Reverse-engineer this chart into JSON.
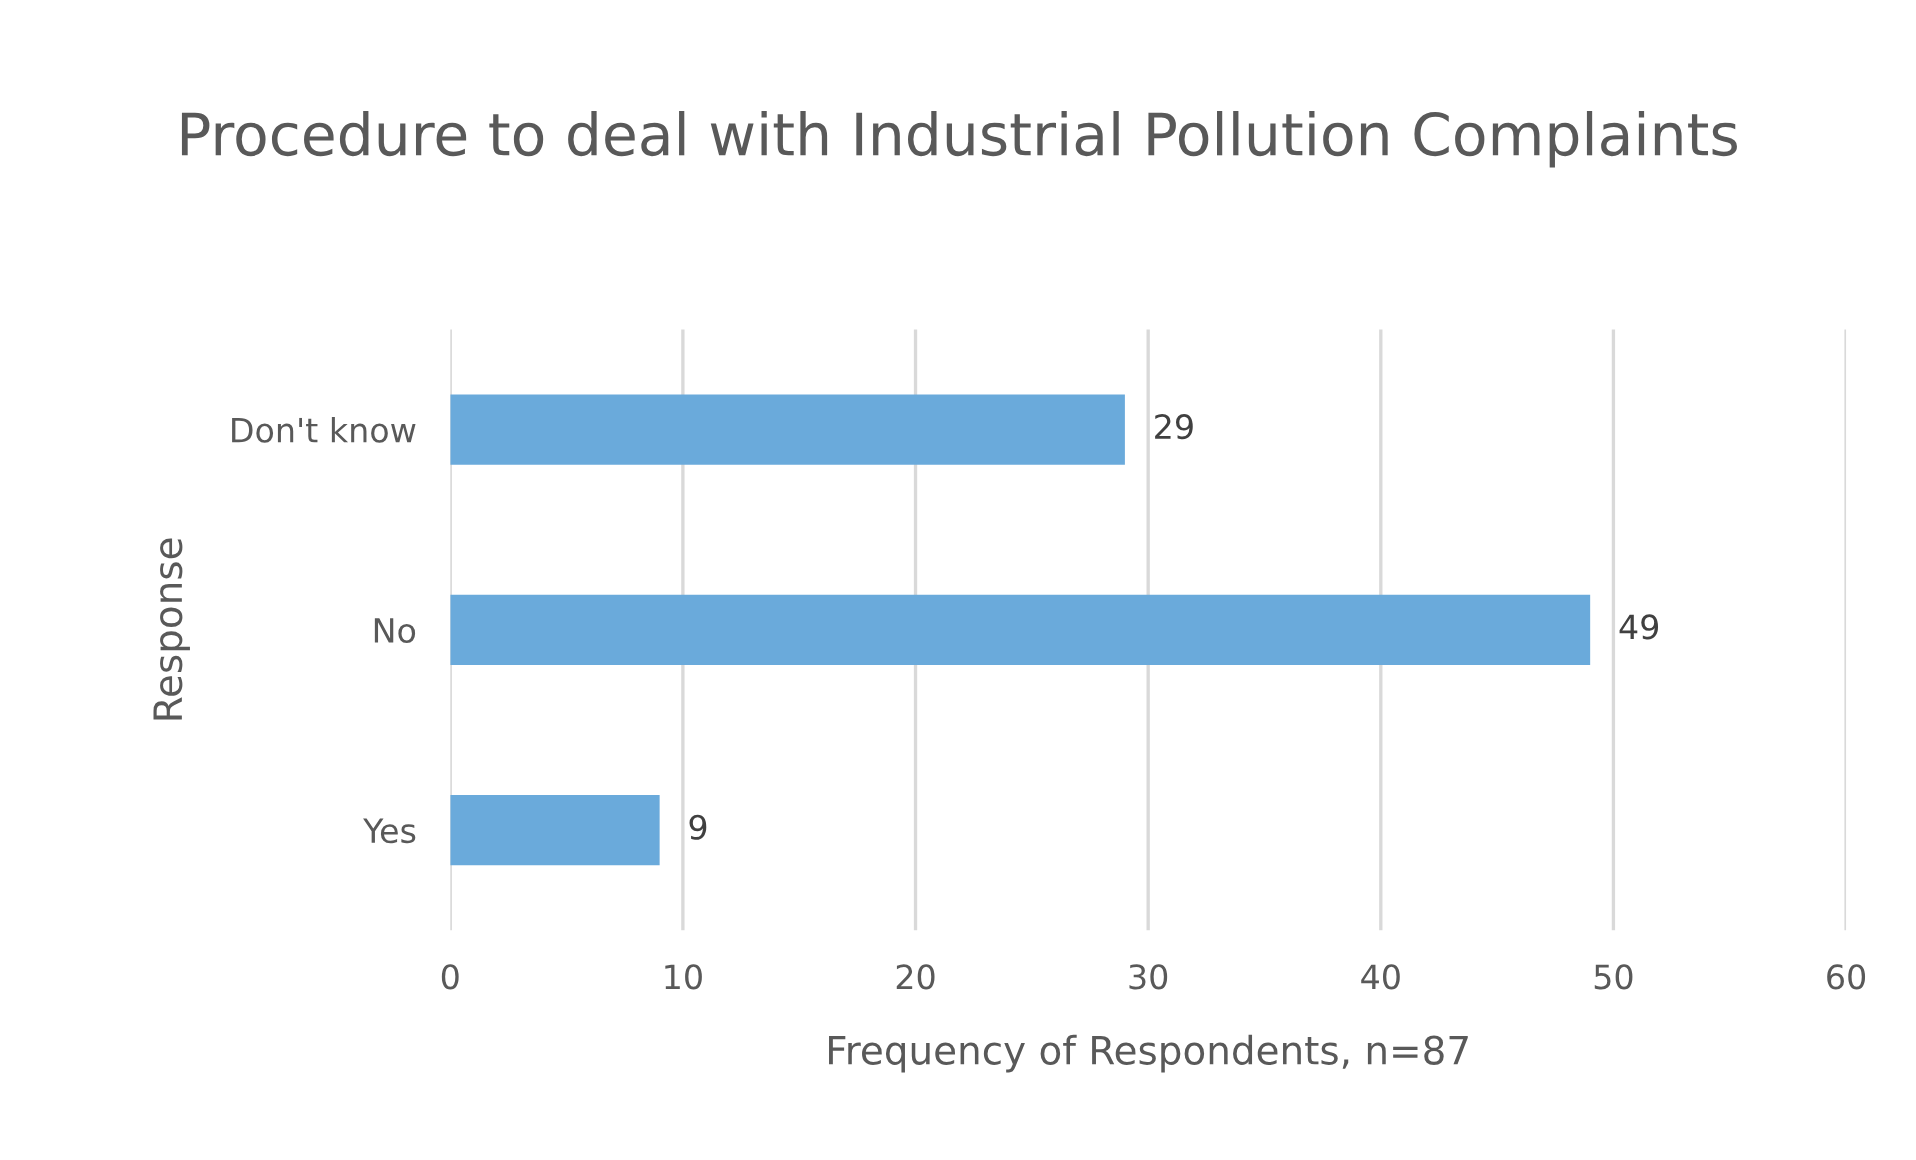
{
  "chart_data": {
    "type": "bar",
    "orientation": "horizontal",
    "title": "Procedure to deal with Industrial Pollution Complaints",
    "categories": [
      "Don't know",
      "No",
      "Yes"
    ],
    "values": [
      29,
      49,
      9
    ],
    "color": "#6aaadb",
    "xlabel": "Frequency of Respondents, n=87",
    "ylabel": "Response",
    "xlim": [
      0,
      60
    ],
    "xticks": [
      0,
      10,
      20,
      30,
      40,
      50,
      60
    ],
    "grid": "x",
    "data_labels": true,
    "legend": false
  }
}
